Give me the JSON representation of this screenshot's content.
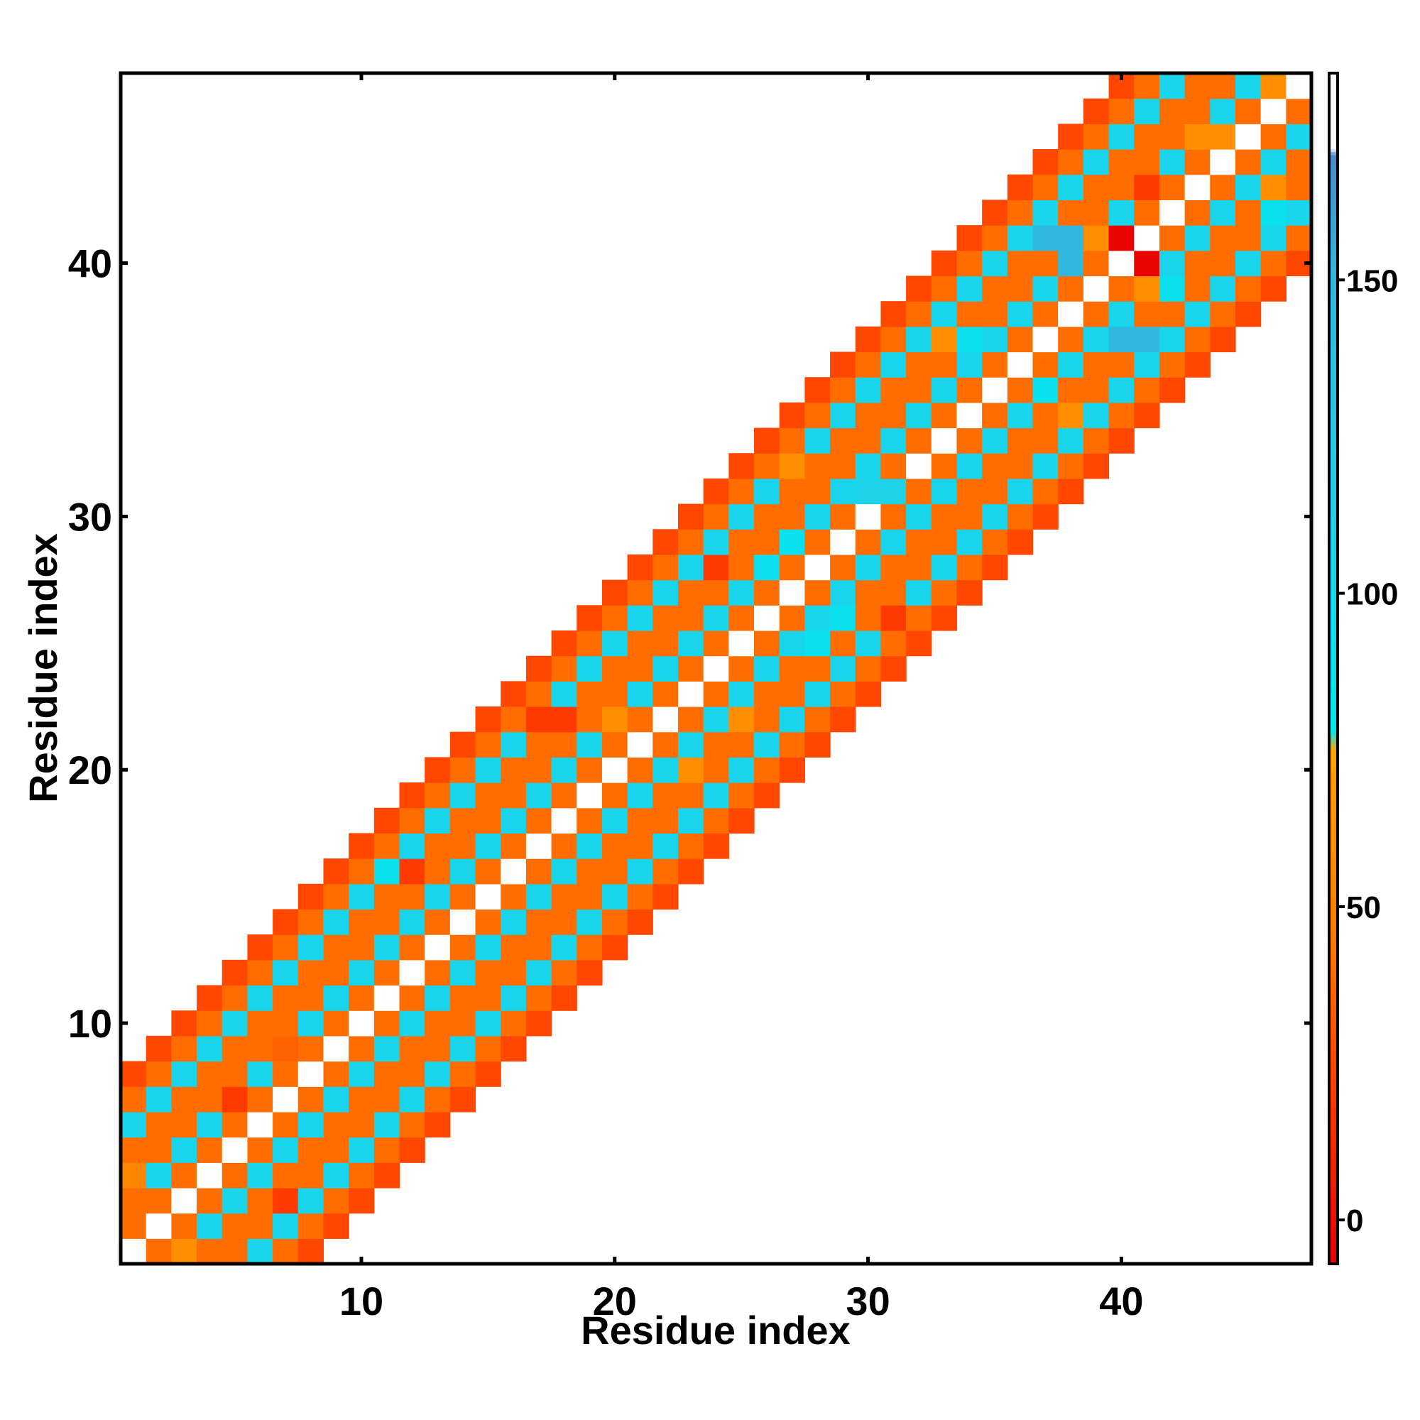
{
  "chart_data": {
    "type": "heatmap",
    "title": "",
    "xlabel": "Residue index",
    "ylabel": "Residue index",
    "xlim": [
      0.5,
      47.5
    ],
    "ylim": [
      0.5,
      47.5
    ],
    "x_ticks": [
      10,
      20,
      30,
      40
    ],
    "x_tick_labels": [
      "10",
      "20",
      "30",
      "40"
    ],
    "y_ticks": [
      10,
      20,
      30,
      40
    ],
    "y_tick_labels": [
      "10",
      "20",
      "30",
      "40"
    ],
    "colorbar": {
      "range": [
        -7,
        183
      ],
      "ticks": [
        0,
        50,
        100,
        150
      ],
      "tick_labels": [
        "0",
        "50",
        "100",
        "150"
      ],
      "stops": [
        {
          "value": -7,
          "color": "#e80000"
        },
        {
          "value": 20,
          "color": "#ff3a00"
        },
        {
          "value": 45,
          "color": "#ff7a00"
        },
        {
          "value": 75,
          "color": "#ffa200"
        },
        {
          "value": 78,
          "color": "#00e8f0"
        },
        {
          "value": 110,
          "color": "#1ed2ea"
        },
        {
          "value": 150,
          "color": "#30b8e0"
        },
        {
          "value": 170,
          "color": "#4a8ac8"
        },
        {
          "value": 171,
          "color": "#ffffff"
        },
        {
          "value": 183,
          "color": "#ffffff"
        }
      ]
    },
    "band": {
      "diagonal_value": 180,
      "offsets": [
        1,
        2,
        3,
        4,
        5,
        6,
        7
      ],
      "offset_values": [
        40,
        105,
        40,
        40,
        105,
        40,
        25
      ],
      "varied_cells": [
        {
          "x": 1,
          "y": 3,
          "v": 40
        },
        {
          "x": 1,
          "y": 4,
          "v": 55
        },
        {
          "x": 2,
          "y": 4,
          "v": 105
        },
        {
          "x": 3,
          "y": 1,
          "v": 60
        },
        {
          "x": 4,
          "y": 1,
          "v": 40
        },
        {
          "x": 5,
          "y": 7,
          "v": 20
        },
        {
          "x": 6,
          "y": 8,
          "v": 105
        },
        {
          "x": 7,
          "y": 9,
          "v": 35
        },
        {
          "x": 7,
          "y": 3,
          "v": 20
        },
        {
          "x": 11,
          "y": 16,
          "v": 90
        },
        {
          "x": 12,
          "y": 16,
          "v": 20
        },
        {
          "x": 17,
          "y": 22,
          "v": 20
        },
        {
          "x": 18,
          "y": 22,
          "v": 20
        },
        {
          "x": 20,
          "y": 22,
          "v": 60
        },
        {
          "x": 23,
          "y": 20,
          "v": 60
        },
        {
          "x": 25,
          "y": 22,
          "v": 60
        },
        {
          "x": 24,
          "y": 28,
          "v": 20
        },
        {
          "x": 26,
          "y": 28,
          "v": 90
        },
        {
          "x": 27,
          "y": 29,
          "v": 90
        },
        {
          "x": 28,
          "y": 25,
          "v": 90
        },
        {
          "x": 29,
          "y": 26,
          "v": 90
        },
        {
          "x": 31,
          "y": 26,
          "v": 20
        },
        {
          "x": 27,
          "y": 32,
          "v": 60
        },
        {
          "x": 30,
          "y": 31,
          "v": 110
        },
        {
          "x": 31,
          "y": 31,
          "v": 110
        },
        {
          "x": 33,
          "y": 33,
          "v": 180
        },
        {
          "x": 34,
          "y": 34,
          "v": 180
        },
        {
          "x": 33,
          "y": 37,
          "v": 60
        },
        {
          "x": 34,
          "y": 37,
          "v": 90
        },
        {
          "x": 37,
          "y": 35,
          "v": 90
        },
        {
          "x": 38,
          "y": 34,
          "v": 60
        },
        {
          "x": 38,
          "y": 37,
          "v": 40
        },
        {
          "x": 37,
          "y": 41,
          "v": 150
        },
        {
          "x": 38,
          "y": 41,
          "v": 150
        },
        {
          "x": 38,
          "y": 40,
          "v": 150
        },
        {
          "x": 40,
          "y": 37,
          "v": 150
        },
        {
          "x": 41,
          "y": 37,
          "v": 150
        },
        {
          "x": 39,
          "y": 41,
          "v": 60
        },
        {
          "x": 40,
          "y": 41,
          "v": -5
        },
        {
          "x": 41,
          "y": 40,
          "v": -5
        },
        {
          "x": 41,
          "y": 39,
          "v": 60
        },
        {
          "x": 42,
          "y": 39,
          "v": 90
        },
        {
          "x": 41,
          "y": 43,
          "v": 20
        },
        {
          "x": 43,
          "y": 45,
          "v": 60
        },
        {
          "x": 44,
          "y": 45,
          "v": 60
        },
        {
          "x": 46,
          "y": 43,
          "v": 60
        },
        {
          "x": 45,
          "y": 47,
          "v": 105
        },
        {
          "x": 46,
          "y": 47,
          "v": 60
        },
        {
          "x": 47,
          "y": 45,
          "v": 105
        },
        {
          "x": 46,
          "y": 42,
          "v": 90
        }
      ]
    }
  }
}
